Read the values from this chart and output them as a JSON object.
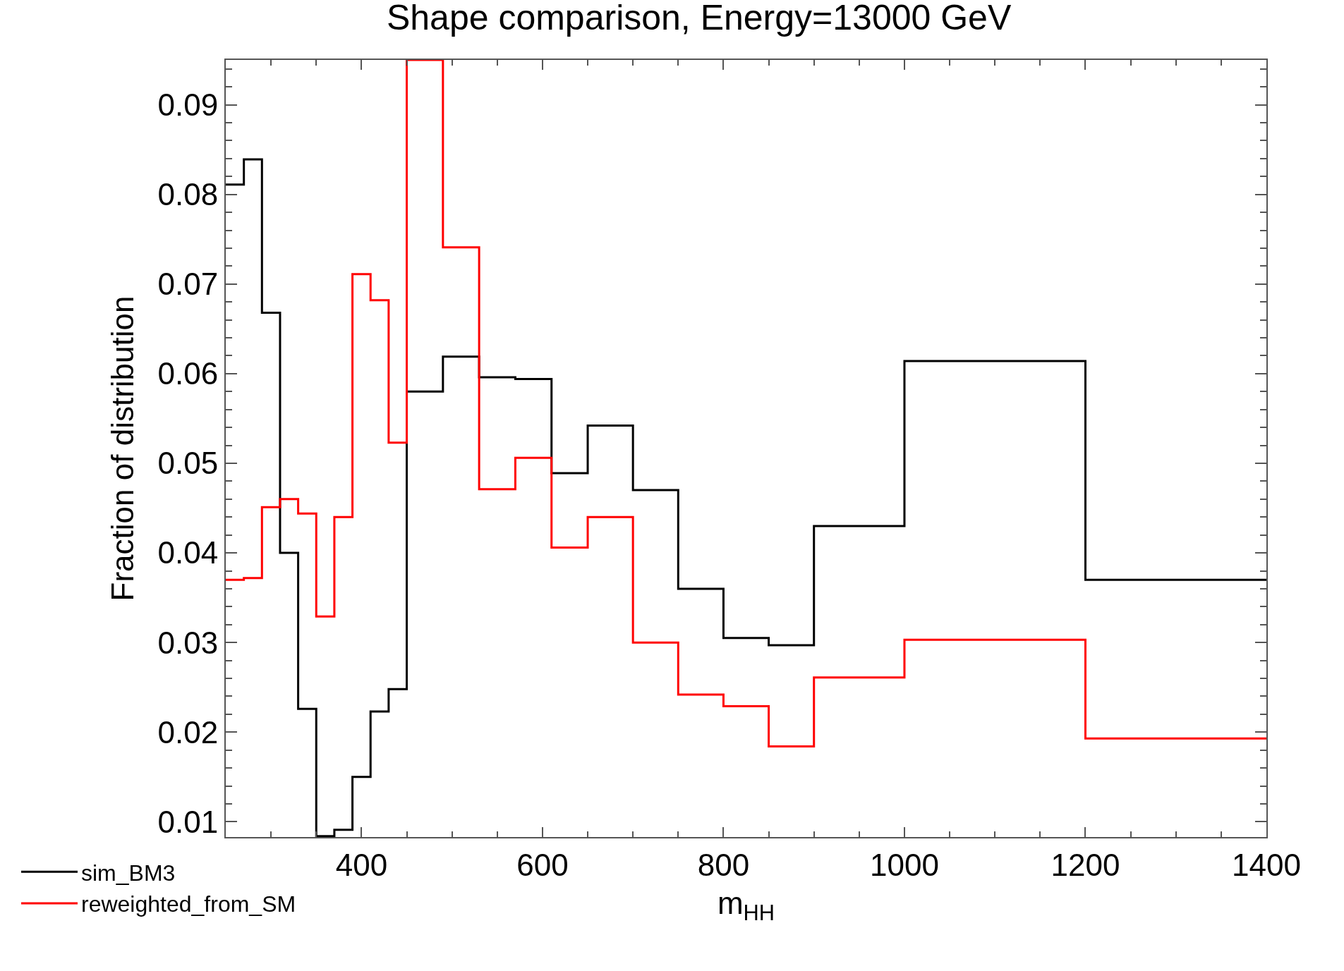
{
  "chart_data": {
    "type": "histogram",
    "title": "Shape comparison, Energy=13000 GeV",
    "xlabel": "m$_{HH}$",
    "ylabel": "Fraction of distribution",
    "bins": [
      250,
      270,
      290,
      310,
      330,
      350,
      370,
      390,
      410,
      430,
      450,
      490,
      530,
      570,
      610,
      650,
      700,
      750,
      800,
      850,
      900,
      1000,
      1200,
      1400
    ],
    "series": [
      {
        "name": "sim_BM3",
        "color": "#000000",
        "values": [
          0.0811,
          0.0839,
          0.0668,
          0.04,
          0.0226,
          0.0084,
          0.0091,
          0.015,
          0.0223,
          0.0248,
          0.058,
          0.0619,
          0.0596,
          0.0594,
          0.0489,
          0.0542,
          0.047,
          0.036,
          0.0305,
          0.0297,
          0.043,
          0.0614,
          0.037
        ]
      },
      {
        "name": "reweighted_from_SM",
        "color": "#ff0000",
        "values": [
          0.037,
          0.0372,
          0.0451,
          0.046,
          0.0444,
          0.0329,
          0.044,
          0.0711,
          0.0682,
          0.0523,
          0.095,
          0.0741,
          0.0471,
          0.0506,
          0.0406,
          0.044,
          0.03,
          0.0242,
          0.0229,
          0.0184,
          0.0261,
          0.0303,
          0.0193
        ]
      }
    ],
    "xlim": [
      250,
      1400
    ],
    "xticks": [
      400,
      600,
      800,
      1000,
      1200,
      1400
    ],
    "ylim": [
      0.0083,
      0.095
    ],
    "yticks": [
      0.01,
      0.02,
      0.03,
      0.04,
      0.05,
      0.06,
      0.07,
      0.08,
      0.09
    ],
    "legend": "bottom left"
  }
}
